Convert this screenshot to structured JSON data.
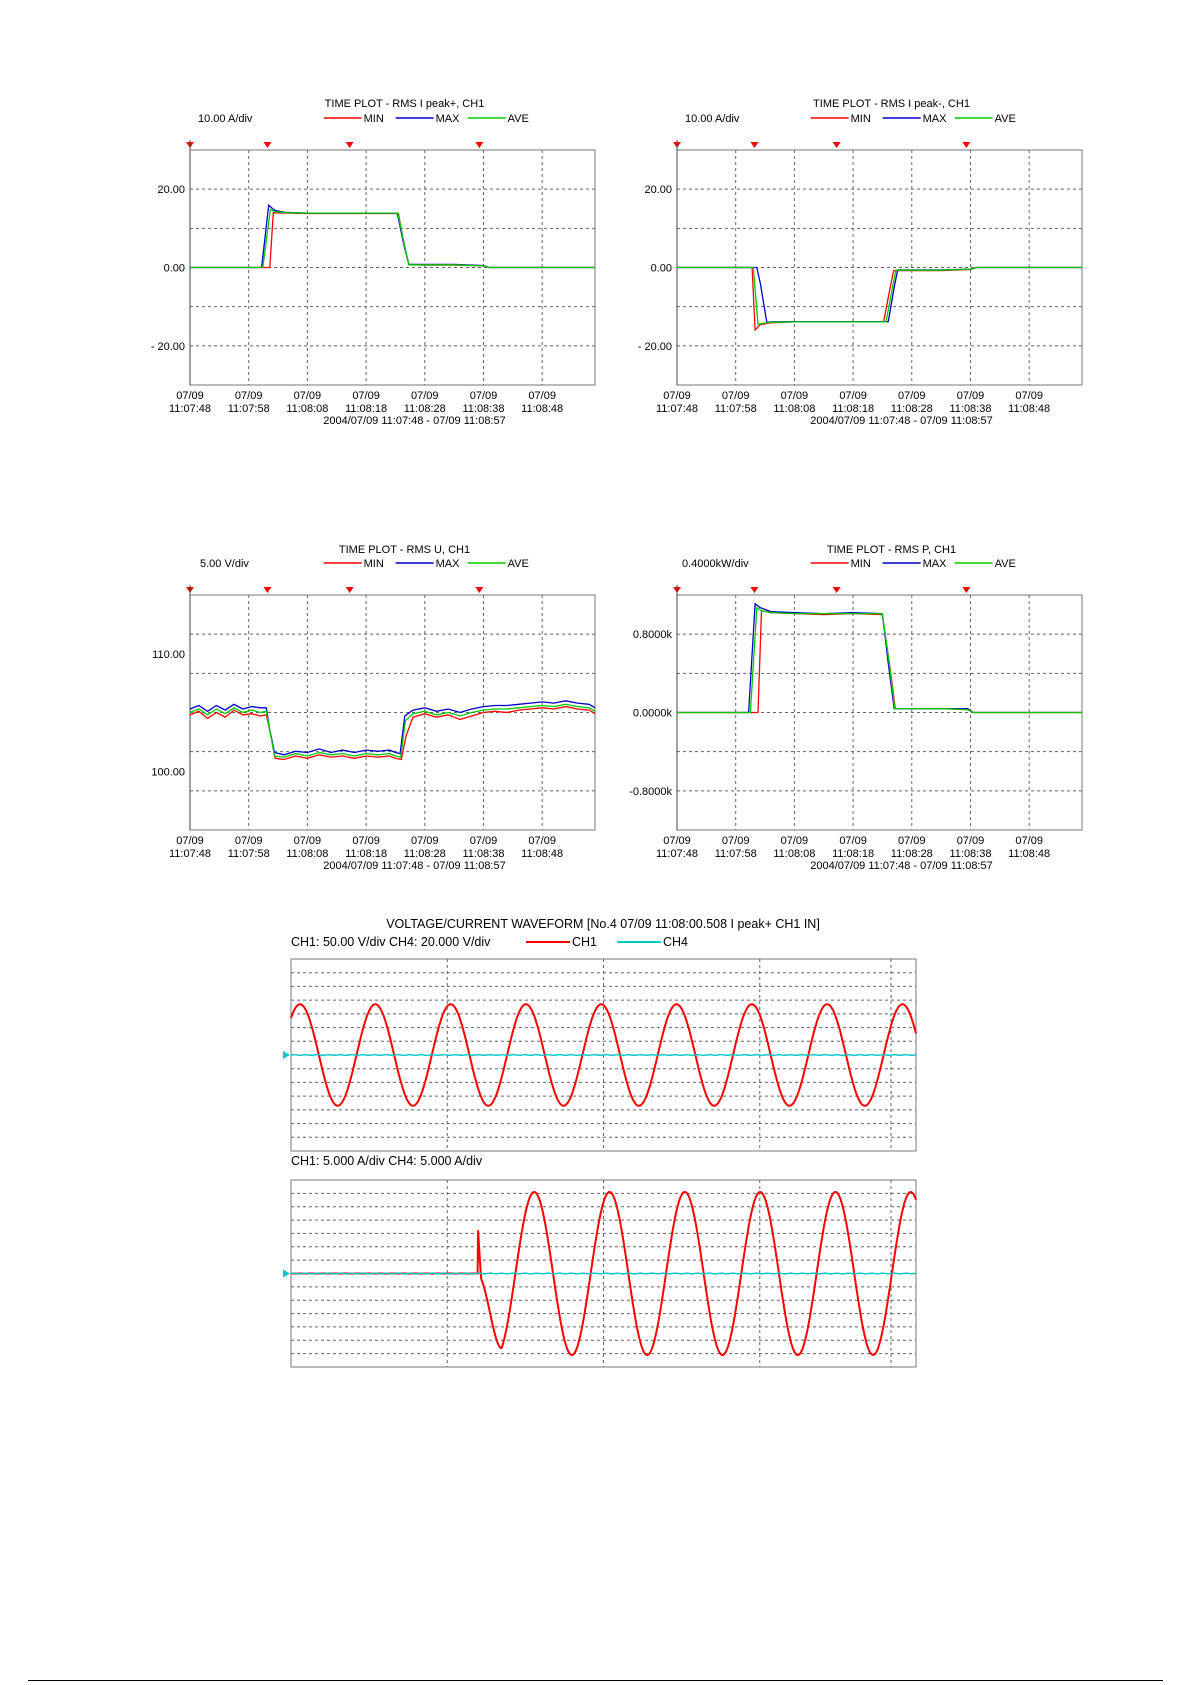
{
  "colors": {
    "min": "#ff0000",
    "max": "#0000cc",
    "ave": "#00cc00",
    "ch1": "#ff0000",
    "ch4": "#00c8c8",
    "marker": "#ff0000"
  },
  "chart_data": [
    {
      "type": "line",
      "title": "TIME PLOT - RMS  I peak+, CH1",
      "scale_label": "10.00 A/div",
      "ylim": [
        -30,
        30
      ],
      "yticks": [
        20,
        0,
        -20
      ],
      "ytick_labels": [
        "20.00",
        "0.00",
        "- 20.00"
      ],
      "xticks": [
        "07/09\n11:07:48",
        "07/09\n11:07:58",
        "07/09\n11:08:08",
        "07/09\n11:08:18",
        "07/09\n11:08:28",
        "07/09\n11:08:38",
        "07/09\n11:08:48"
      ],
      "xrange_label": "2004/07/09 11:07:48 - 07/09 11:08:57",
      "xlim": [
        0,
        69
      ],
      "markers": [
        0,
        13.2,
        27.2,
        49.3
      ],
      "grid": true,
      "legend": "top",
      "series": [
        {
          "name": "MIN",
          "x": [
            0,
            12.8,
            13.6,
            14.2,
            16,
            20,
            30,
            35.5,
            36.6,
            37.3,
            40,
            45,
            50,
            51,
            69
          ],
          "y": [
            0,
            0,
            0,
            14,
            13.9,
            13.8,
            13.8,
            13.8,
            5,
            0.7,
            0.6,
            0.6,
            0.4,
            0,
            0
          ]
        },
        {
          "name": "MAX",
          "x": [
            0,
            12.2,
            13.4,
            14.4,
            16,
            20,
            30,
            35.3,
            36.4,
            37.3,
            40,
            45,
            50,
            51,
            69
          ],
          "y": [
            0,
            0,
            15.9,
            14.6,
            14.1,
            13.9,
            13.9,
            13.9,
            6,
            0.8,
            0.8,
            0.8,
            0.5,
            0,
            0
          ]
        },
        {
          "name": "AVE",
          "x": [
            0,
            12.4,
            13.7,
            14.4,
            16,
            20,
            30,
            35.4,
            36.5,
            37.3,
            40,
            45,
            50,
            51,
            69
          ],
          "y": [
            0,
            0,
            14.8,
            14.3,
            14,
            13.9,
            13.9,
            13.9,
            6,
            0.7,
            0.7,
            0.7,
            0.4,
            0,
            0
          ]
        }
      ]
    },
    {
      "type": "line",
      "title": "TIME PLOT - RMS  I peak-, CH1",
      "scale_label": "10.00 A/div",
      "ylim": [
        -30,
        30
      ],
      "yticks": [
        20,
        0,
        -20
      ],
      "ytick_labels": [
        "20.00",
        "0.00",
        "- 20.00"
      ],
      "xticks": [
        "07/09\n11:07:48",
        "07/09\n11:07:58",
        "07/09\n11:08:08",
        "07/09\n11:08:18",
        "07/09\n11:08:28",
        "07/09\n11:08:38",
        "07/09\n11:08:48"
      ],
      "xrange_label": "2004/07/09 11:07:48 - 07/09 11:08:57",
      "xlim": [
        0,
        69
      ],
      "markers": [
        0,
        13.2,
        27.2,
        49.3
      ],
      "grid": true,
      "legend": "top",
      "series": [
        {
          "name": "MIN",
          "x": [
            0,
            12.8,
            13.3,
            14.2,
            16,
            20,
            30,
            35.2,
            36.2,
            36.9,
            40,
            45,
            50,
            51,
            69
          ],
          "y": [
            0,
            0,
            -15.9,
            -14.6,
            -14.1,
            -13.9,
            -13.9,
            -13.9,
            -6,
            -0.8,
            -0.8,
            -0.8,
            -0.5,
            0,
            0
          ]
        },
        {
          "name": "MAX",
          "x": [
            0,
            13.6,
            14.2,
            15.3,
            16,
            20,
            30,
            36,
            37,
            37.6,
            40,
            45,
            50,
            51,
            69
          ],
          "y": [
            0,
            0,
            -4,
            -14,
            -13.9,
            -13.8,
            -13.8,
            -13.8,
            -5,
            -0.6,
            -0.6,
            -0.6,
            -0.4,
            0,
            0
          ]
        },
        {
          "name": "AVE",
          "x": [
            0,
            13,
            13.8,
            14.8,
            16,
            20,
            30,
            35.6,
            36.6,
            37.3,
            40,
            45,
            50,
            51,
            69
          ],
          "y": [
            0,
            0,
            -14.5,
            -14.2,
            -14,
            -13.9,
            -13.9,
            -13.9,
            -6,
            -0.7,
            -0.7,
            -0.7,
            -0.4,
            0,
            0
          ]
        }
      ]
    },
    {
      "type": "line",
      "title": "TIME PLOT - RMS  U, CH1",
      "scale_label": "5.00 V/div",
      "ylim": [
        95,
        115
      ],
      "yticks": [
        110,
        100
      ],
      "ytick_labels": [
        "110.00",
        "100.00"
      ],
      "xticks": [
        "07/09\n11:07:48",
        "07/09\n11:07:58",
        "07/09\n11:08:08",
        "07/09\n11:08:18",
        "07/09\n11:08:28",
        "07/09\n11:08:38",
        "07/09\n11:08:48"
      ],
      "xrange_label": "2004/07/09 11:07:48 - 07/09 11:08:57",
      "xlim": [
        0,
        69
      ],
      "markers": [
        0,
        13.2,
        27.2,
        49.3
      ],
      "grid": true,
      "legend": "top",
      "series": [
        {
          "name": "MIN",
          "x": [
            0,
            1.5,
            3,
            4.5,
            6,
            7.5,
            9,
            10.5,
            12,
            13,
            13.8,
            14.5,
            16,
            18,
            20,
            22,
            24,
            26,
            28,
            30,
            32,
            34,
            35,
            36,
            36.8,
            38,
            40,
            42,
            44,
            46,
            48,
            50,
            52,
            54,
            56,
            58,
            60,
            62,
            64,
            66,
            68,
            69
          ],
          "y": [
            104.8,
            105.1,
            104.5,
            105,
            104.6,
            105.2,
            104.8,
            104.9,
            104.7,
            104.8,
            103,
            101.1,
            101.0,
            101.3,
            101.1,
            101.4,
            101.2,
            101.3,
            101.1,
            101.3,
            101.2,
            101.3,
            101.1,
            101.0,
            103,
            104.6,
            104.9,
            104.6,
            104.8,
            104.4,
            104.7,
            105.0,
            105.1,
            105.0,
            105.2,
            105.3,
            105.4,
            105.3,
            105.5,
            105.3,
            105.2,
            104.9
          ]
        },
        {
          "name": "MAX",
          "x": [
            0,
            1.5,
            3,
            4.5,
            6,
            7.5,
            9,
            10.5,
            12,
            13,
            13.6,
            14.4,
            16,
            18,
            20,
            22,
            24,
            26,
            28,
            30,
            32,
            34,
            35,
            35.8,
            36.6,
            38,
            40,
            42,
            44,
            46,
            48,
            50,
            52,
            54,
            56,
            58,
            60,
            62,
            64,
            66,
            68,
            69
          ],
          "y": [
            105.3,
            105.6,
            105.1,
            105.6,
            105.2,
            105.7,
            105.3,
            105.5,
            105.4,
            105.4,
            103.5,
            101.6,
            101.4,
            101.7,
            101.6,
            101.9,
            101.6,
            101.8,
            101.6,
            101.8,
            101.7,
            101.8,
            101.6,
            101.5,
            104.7,
            105.2,
            105.4,
            105.1,
            105.3,
            105.0,
            105.3,
            105.5,
            105.6,
            105.6,
            105.7,
            105.8,
            105.9,
            105.8,
            106.0,
            105.8,
            105.7,
            105.4
          ]
        },
        {
          "name": "AVE",
          "x": [
            0,
            1.5,
            3,
            4.5,
            6,
            7.5,
            9,
            10.5,
            12,
            13,
            13.7,
            14.4,
            16,
            18,
            20,
            22,
            24,
            26,
            28,
            30,
            32,
            34,
            35,
            35.9,
            36.7,
            38,
            40,
            42,
            44,
            46,
            48,
            50,
            52,
            54,
            56,
            58,
            60,
            62,
            64,
            66,
            68,
            69
          ],
          "y": [
            105.0,
            105.3,
            104.8,
            105.3,
            104.9,
            105.4,
            105.0,
            105.2,
            105.0,
            105.1,
            103.2,
            101.3,
            101.2,
            101.5,
            101.3,
            101.6,
            101.4,
            101.5,
            101.3,
            101.5,
            101.4,
            101.5,
            101.3,
            101.2,
            104.3,
            104.9,
            105.1,
            104.8,
            105.0,
            104.7,
            105.0,
            105.2,
            105.3,
            105.3,
            105.4,
            105.5,
            105.6,
            105.5,
            105.7,
            105.5,
            105.4,
            105.1
          ]
        }
      ]
    },
    {
      "type": "line",
      "title": "TIME PLOT - RMS  P, CH1",
      "scale_label": "0.4000kW/div",
      "ylim": [
        -1.2,
        1.2
      ],
      "yticks": [
        0.8,
        0,
        -0.8
      ],
      "ytick_labels": [
        "0.8000k",
        "0.0000k",
        "-0.8000k"
      ],
      "xticks": [
        "07/09\n11:07:48",
        "07/09\n11:07:58",
        "07/09\n11:08:08",
        "07/09\n11:08:18",
        "07/09\n11:08:28",
        "07/09\n11:08:38",
        "07/09\n11:08:48"
      ],
      "xrange_label": "2004/07/09 11:07:48 - 07/09 11:08:57",
      "xlim": [
        0,
        69
      ],
      "markers": [
        0,
        13.2,
        27.2,
        49.3
      ],
      "grid": true,
      "legend": "top",
      "series": [
        {
          "name": "MIN",
          "x": [
            0,
            12.8,
            13.8,
            14.4,
            16,
            20,
            25,
            30,
            35,
            36.3,
            37.2,
            40,
            45,
            49.5,
            50.5,
            69
          ],
          "y": [
            0,
            0,
            0,
            1.04,
            1.02,
            1.01,
            1.0,
            1.01,
            1.0,
            0.45,
            0.04,
            0.04,
            0.04,
            0.03,
            0,
            0
          ]
        },
        {
          "name": "MAX",
          "x": [
            0,
            12.2,
            13.3,
            14.2,
            16,
            20,
            25,
            30,
            35,
            36.0,
            37.0,
            40,
            45,
            49.5,
            50.5,
            69
          ],
          "y": [
            0,
            0,
            1.11,
            1.07,
            1.03,
            1.02,
            1.01,
            1.02,
            1.01,
            0.5,
            0.04,
            0.04,
            0.04,
            0.04,
            0,
            0
          ]
        },
        {
          "name": "AVE",
          "x": [
            0,
            12.5,
            13.6,
            14.4,
            16,
            20,
            25,
            30,
            35,
            36.2,
            37.1,
            40,
            45,
            49.5,
            50.5,
            69
          ],
          "y": [
            0,
            0,
            1.07,
            1.04,
            1.02,
            1.01,
            1.01,
            1.01,
            1.01,
            0.48,
            0.04,
            0.04,
            0.04,
            0.03,
            0,
            0
          ]
        }
      ]
    },
    {
      "type": "line",
      "title": "VOLTAGE/CURRENT WAVEFORM [No.4 07/09 11:08:00.508  I peak+  CH1  IN]",
      "voltage": {
        "scale_label": "CH1:  50.00 V/div  CH4:  20.000 V/div",
        "ylim": [
          -7,
          7
        ],
        "xlim": [
          0,
          8.3
        ],
        "series": [
          {
            "name": "CH1",
            "kind": "sine",
            "amplitude": 3.7,
            "phase_cycles": 0.13,
            "cycles": 8.3
          },
          {
            "name": "CH4",
            "kind": "flat",
            "level": 0
          }
        ]
      },
      "current": {
        "scale_label": "CH1:  5.000 A/div  CH4:  5.000 A/div",
        "ylim": [
          -7,
          7
        ],
        "xlim": [
          0,
          8.3
        ],
        "series": [
          {
            "name": "CH1",
            "kind": "onset-sine",
            "amplitude": 6.1,
            "onset": 2.48,
            "spike": 0.9,
            "phase_cycles": 0.0,
            "cycles": 8.3
          },
          {
            "name": "CH4",
            "kind": "flat",
            "level": 0
          }
        ]
      }
    }
  ],
  "waveform_legend": [
    "CH1",
    "CH4"
  ]
}
